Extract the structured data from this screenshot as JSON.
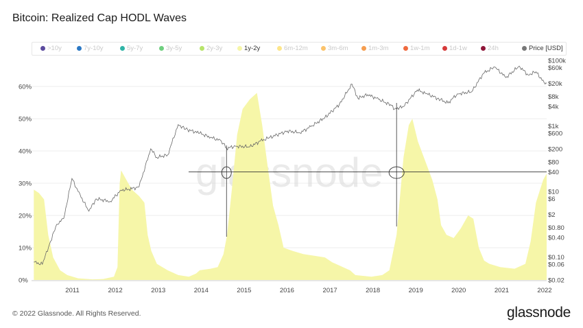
{
  "title": "Bitcoin: Realized Cap HODL Waves",
  "legend": [
    {
      "label": ">10y",
      "color": "#5b4a9e",
      "active": false
    },
    {
      "label": "7y-10y",
      "color": "#2b78c4",
      "active": false
    },
    {
      "label": "5y-7y",
      "color": "#2fb4a6",
      "active": false
    },
    {
      "label": "3y-5y",
      "color": "#6fcf7f",
      "active": false
    },
    {
      "label": "2y-3y",
      "color": "#b7e46a",
      "active": false
    },
    {
      "label": "1y-2y",
      "color": "#f6f6a8",
      "active": true
    },
    {
      "label": "6m-12m",
      "color": "#fde68a",
      "active": false
    },
    {
      "label": "3m-6m",
      "color": "#fbc36b",
      "active": false
    },
    {
      "label": "1m-3m",
      "color": "#f59d4f",
      "active": false
    },
    {
      "label": "1w-1m",
      "color": "#ef6a3f",
      "active": false
    },
    {
      "label": "1d-1w",
      "color": "#d63a3a",
      "active": false
    },
    {
      "label": "24h",
      "color": "#8e1538",
      "active": false
    },
    {
      "label": "Price [USD]",
      "color": "#777777",
      "active": true
    }
  ],
  "watermark": "glassnode",
  "footer": "© 2022 Glassnode. All Rights Reserved.",
  "brand": "glassnode",
  "chart_data": {
    "type": "area",
    "x_axis": {
      "type": "time",
      "range": [
        "2010-07",
        "2022-07"
      ],
      "ticks": [
        "2011",
        "2012",
        "2013",
        "2014",
        "2015",
        "2016",
        "2017",
        "2018",
        "2019",
        "2020",
        "2021",
        "2022"
      ]
    },
    "y_left": {
      "range": [
        0,
        70
      ],
      "unit": "%",
      "ticks": [
        "0%",
        "10%",
        "20%",
        "30%",
        "40%",
        "50%",
        "60%"
      ]
    },
    "y_right": {
      "scale": "log",
      "range": [
        0.02,
        100000
      ],
      "ticks": [
        "$100k",
        "$60k",
        "$20k",
        "$8k",
        "$4k",
        "$1k",
        "$600",
        "$200",
        "$80",
        "$40",
        "$10",
        "$6",
        "$2",
        "$0.80",
        "$0.40",
        "$0.10",
        "$0.06",
        "$0.02"
      ]
    },
    "series": [
      {
        "name": "1y-2y",
        "color": "#f6f6a8",
        "points": [
          [
            "2010-07-20",
            28
          ],
          [
            "2010-09-01",
            27
          ],
          [
            "2010-10-15",
            25
          ],
          [
            "2010-11-20",
            14
          ],
          [
            "2011-01-01",
            7
          ],
          [
            "2011-03-01",
            3
          ],
          [
            "2011-05-01",
            1.5
          ],
          [
            "2011-08-01",
            0.5
          ],
          [
            "2011-12-01",
            0.2
          ],
          [
            "2012-03-01",
            0.3
          ],
          [
            "2012-06-01",
            1
          ],
          [
            "2012-07-01",
            4
          ],
          [
            "2012-07-20",
            30
          ],
          [
            "2012-08-01",
            34
          ],
          [
            "2012-09-15",
            31
          ],
          [
            "2012-11-01",
            28
          ],
          [
            "2013-01-01",
            26
          ],
          [
            "2013-02-15",
            24
          ],
          [
            "2013-03-15",
            14
          ],
          [
            "2013-04-15",
            9
          ],
          [
            "2013-06-01",
            5
          ],
          [
            "2013-09-01",
            3
          ],
          [
            "2013-12-01",
            1.5
          ],
          [
            "2014-03-01",
            1
          ],
          [
            "2014-05-01",
            2
          ],
          [
            "2014-06-01",
            3
          ],
          [
            "2014-09-01",
            3.5
          ],
          [
            "2014-11-01",
            4
          ],
          [
            "2014-12-20",
            8
          ],
          [
            "2015-01-20",
            14
          ],
          [
            "2015-03-01",
            28
          ],
          [
            "2015-04-15",
            45
          ],
          [
            "2015-06-01",
            53
          ],
          [
            "2015-08-01",
            56
          ],
          [
            "2015-10-01",
            58
          ],
          [
            "2015-11-15",
            48
          ],
          [
            "2016-01-01",
            35
          ],
          [
            "2016-02-15",
            23
          ],
          [
            "2016-04-01",
            17
          ],
          [
            "2016-05-15",
            10
          ],
          [
            "2016-08-01",
            9
          ],
          [
            "2016-11-01",
            8
          ],
          [
            "2017-02-01",
            7.5
          ],
          [
            "2017-05-01",
            7
          ],
          [
            "2017-07-01",
            5.5
          ],
          [
            "2017-09-01",
            4.5
          ],
          [
            "2017-12-01",
            3
          ],
          [
            "2018-01-15",
            1.5
          ],
          [
            "2018-06-01",
            1
          ],
          [
            "2018-09-01",
            1.5
          ],
          [
            "2018-11-01",
            3
          ],
          [
            "2019-01-01",
            14
          ],
          [
            "2019-03-01",
            38
          ],
          [
            "2019-04-15",
            48
          ],
          [
            "2019-05-15",
            50
          ],
          [
            "2019-07-01",
            43
          ],
          [
            "2019-09-01",
            37
          ],
          [
            "2019-11-01",
            31
          ],
          [
            "2019-12-15",
            25
          ],
          [
            "2020-01-15",
            17
          ],
          [
            "2020-03-01",
            14
          ],
          [
            "2020-05-01",
            13
          ],
          [
            "2020-07-01",
            16
          ],
          [
            "2020-09-01",
            20
          ],
          [
            "2020-10-15",
            19
          ],
          [
            "2020-12-01",
            10
          ],
          [
            "2021-01-15",
            6
          ],
          [
            "2021-03-01",
            5
          ],
          [
            "2021-06-01",
            4
          ],
          [
            "2021-10-01",
            3.5
          ],
          [
            "2022-01-01",
            5
          ],
          [
            "2022-02-15",
            12
          ],
          [
            "2022-04-01",
            24
          ],
          [
            "2022-06-01",
            31
          ],
          [
            "2022-07-01",
            33
          ]
        ]
      },
      {
        "name": "Price [USD]",
        "color": "#777777",
        "axis": "right",
        "points": [
          [
            "2010-07-20",
            0.07
          ],
          [
            "2010-10-01",
            0.06
          ],
          [
            "2010-12-01",
            0.25
          ],
          [
            "2011-02-01",
            1
          ],
          [
            "2011-04-01",
            1.5
          ],
          [
            "2011-06-10",
            25
          ],
          [
            "2011-08-01",
            10
          ],
          [
            "2011-11-01",
            2.5
          ],
          [
            "2012-01-01",
            6
          ],
          [
            "2012-05-01",
            5
          ],
          [
            "2012-08-01",
            11
          ],
          [
            "2012-11-01",
            12
          ],
          [
            "2013-01-01",
            14
          ],
          [
            "2013-04-10",
            200
          ],
          [
            "2013-06-01",
            110
          ],
          [
            "2013-09-01",
            130
          ],
          [
            "2013-11-30",
            1100
          ],
          [
            "2014-02-01",
            800
          ],
          [
            "2014-06-01",
            600
          ],
          [
            "2014-09-01",
            450
          ],
          [
            "2014-12-01",
            350
          ],
          [
            "2015-01-15",
            210
          ],
          [
            "2015-04-01",
            240
          ],
          [
            "2015-08-01",
            230
          ],
          [
            "2015-11-01",
            350
          ],
          [
            "2016-01-01",
            420
          ],
          [
            "2016-06-15",
            700
          ],
          [
            "2016-10-01",
            620
          ],
          [
            "2017-01-01",
            950
          ],
          [
            "2017-05-01",
            1800
          ],
          [
            "2017-09-01",
            4500
          ],
          [
            "2017-12-17",
            19000
          ],
          [
            "2018-02-06",
            7000
          ],
          [
            "2018-05-01",
            9000
          ],
          [
            "2018-08-01",
            6500
          ],
          [
            "2018-11-20",
            4200
          ],
          [
            "2018-12-15",
            3300
          ],
          [
            "2019-03-01",
            3900
          ],
          [
            "2019-06-26",
            12500
          ],
          [
            "2019-09-01",
            10000
          ],
          [
            "2019-12-15",
            7000
          ],
          [
            "2020-03-13",
            5000
          ],
          [
            "2020-06-01",
            9500
          ],
          [
            "2020-10-01",
            11000
          ],
          [
            "2021-01-08",
            40000
          ],
          [
            "2021-04-14",
            63000
          ],
          [
            "2021-07-20",
            30000
          ],
          [
            "2021-11-10",
            67000
          ],
          [
            "2022-01-24",
            36000
          ],
          [
            "2022-04-01",
            45000
          ],
          [
            "2022-06-18",
            19000
          ],
          [
            "2022-07-01",
            20000
          ]
        ]
      }
    ],
    "annotations": [
      {
        "type": "crosshair",
        "date": "2015-01-15",
        "y_pct": 33.5
      },
      {
        "type": "crosshair",
        "date": "2019-01-01",
        "y_pct": 33.5
      }
    ],
    "legend_position": "top",
    "grid": "horizontal"
  }
}
